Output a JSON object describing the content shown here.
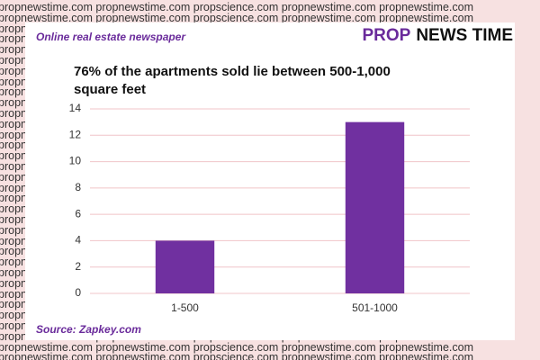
{
  "watermark": "propnewstime.com propnewstime.com propscience.com propnewstime.com propnewstime.com",
  "header": {
    "tagline": "Online real estate newspaper",
    "brand_prop": "PROP",
    "brand_rest": "NEWS TIME"
  },
  "source": "Source: Zapkey.com",
  "chart_data": {
    "type": "bar",
    "title": "76% of the apartments sold lie between 500-1,000 square feet",
    "categories": [
      "1-500",
      "501-1000"
    ],
    "values": [
      4,
      13
    ],
    "color": "#7030a0",
    "ylim": [
      0,
      14
    ],
    "yticks": [
      0,
      2,
      4,
      6,
      8,
      10,
      12,
      14
    ],
    "grid": true
  }
}
